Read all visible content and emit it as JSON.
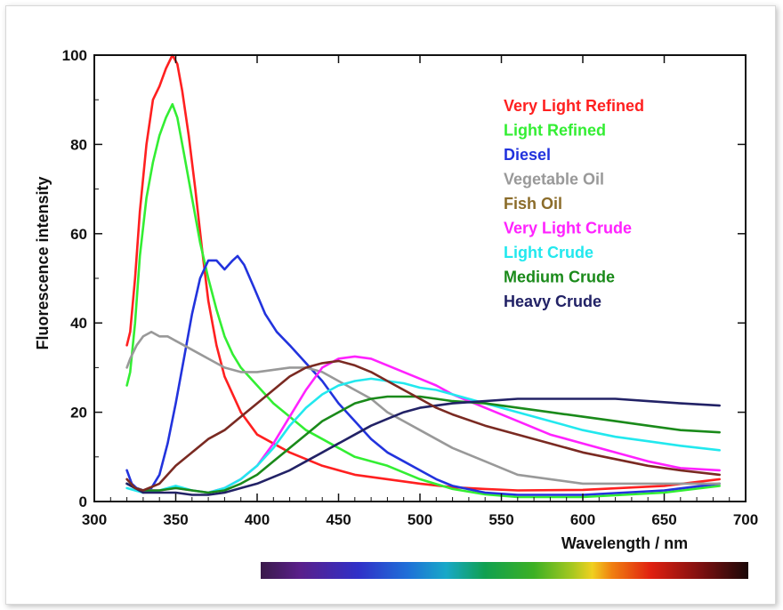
{
  "chart_data": {
    "type": "line",
    "xlabel": "Wavelength  / nm",
    "ylabel": "Fluorescence intensity",
    "xlim": [
      300,
      700
    ],
    "ylim": [
      0,
      100
    ],
    "xticks": [
      "300",
      "350",
      "400",
      "450",
      "500",
      "550",
      "600",
      "650",
      "700"
    ],
    "yticks": [
      "0",
      "20",
      "40",
      "60",
      "80",
      "100"
    ],
    "grid": false,
    "legend_position": "top-right",
    "spectrum_bar": true,
    "series": [
      {
        "name": "Very Light Refined",
        "color": "#ff2020",
        "points": [
          [
            320,
            35
          ],
          [
            322,
            38
          ],
          [
            325,
            50
          ],
          [
            328,
            65
          ],
          [
            332,
            80
          ],
          [
            336,
            90
          ],
          [
            340,
            93
          ],
          [
            344,
            97
          ],
          [
            348,
            100
          ],
          [
            351,
            98
          ],
          [
            354,
            92
          ],
          [
            358,
            82
          ],
          [
            362,
            70
          ],
          [
            366,
            57
          ],
          [
            370,
            45
          ],
          [
            375,
            35
          ],
          [
            380,
            28
          ],
          [
            390,
            20
          ],
          [
            400,
            15
          ],
          [
            420,
            11
          ],
          [
            440,
            8
          ],
          [
            460,
            6
          ],
          [
            480,
            5
          ],
          [
            500,
            4
          ],
          [
            520,
            3.2
          ],
          [
            540,
            2.8
          ],
          [
            560,
            2.5
          ],
          [
            600,
            2.6
          ],
          [
            650,
            3.5
          ],
          [
            684,
            5
          ]
        ]
      },
      {
        "name": "Light Refined",
        "color": "#33ee33",
        "points": [
          [
            320,
            26
          ],
          [
            322,
            29
          ],
          [
            325,
            40
          ],
          [
            328,
            55
          ],
          [
            332,
            68
          ],
          [
            336,
            76
          ],
          [
            340,
            82
          ],
          [
            344,
            86
          ],
          [
            348,
            89
          ],
          [
            351,
            86
          ],
          [
            355,
            78
          ],
          [
            360,
            68
          ],
          [
            365,
            58
          ],
          [
            370,
            50
          ],
          [
            375,
            43
          ],
          [
            380,
            37
          ],
          [
            385,
            33
          ],
          [
            390,
            30
          ],
          [
            400,
            26
          ],
          [
            410,
            22
          ],
          [
            420,
            19
          ],
          [
            430,
            16
          ],
          [
            440,
            14
          ],
          [
            450,
            12
          ],
          [
            460,
            10
          ],
          [
            480,
            8
          ],
          [
            500,
            5
          ],
          [
            520,
            2.8
          ],
          [
            540,
            1.6
          ],
          [
            560,
            1
          ],
          [
            600,
            1
          ],
          [
            650,
            2
          ],
          [
            684,
            3.5
          ]
        ]
      },
      {
        "name": "Diesel",
        "color": "#2233dd",
        "points": [
          [
            320,
            7
          ],
          [
            323,
            4
          ],
          [
            326,
            3
          ],
          [
            330,
            2.5
          ],
          [
            335,
            3
          ],
          [
            340,
            6
          ],
          [
            345,
            13
          ],
          [
            350,
            22
          ],
          [
            355,
            32
          ],
          [
            360,
            42
          ],
          [
            365,
            50
          ],
          [
            370,
            54
          ],
          [
            375,
            54
          ],
          [
            380,
            52
          ],
          [
            385,
            54
          ],
          [
            388,
            55
          ],
          [
            392,
            53
          ],
          [
            398,
            48
          ],
          [
            405,
            42
          ],
          [
            412,
            38
          ],
          [
            420,
            35
          ],
          [
            430,
            31
          ],
          [
            440,
            27
          ],
          [
            450,
            22
          ],
          [
            460,
            18
          ],
          [
            470,
            14
          ],
          [
            480,
            11
          ],
          [
            490,
            9
          ],
          [
            500,
            7
          ],
          [
            510,
            5
          ],
          [
            520,
            3.5
          ],
          [
            540,
            2
          ],
          [
            560,
            1.5
          ],
          [
            600,
            1.5
          ],
          [
            650,
            2.5
          ],
          [
            684,
            4
          ]
        ]
      },
      {
        "name": "Vegetable Oil",
        "color": "#999999",
        "points": [
          [
            320,
            30
          ],
          [
            322,
            32
          ],
          [
            326,
            35
          ],
          [
            330,
            37
          ],
          [
            335,
            38
          ],
          [
            340,
            37
          ],
          [
            345,
            37
          ],
          [
            350,
            36
          ],
          [
            355,
            35
          ],
          [
            360,
            34
          ],
          [
            365,
            33
          ],
          [
            370,
            32
          ],
          [
            380,
            30
          ],
          [
            390,
            29
          ],
          [
            400,
            29
          ],
          [
            410,
            29.5
          ],
          [
            420,
            30
          ],
          [
            430,
            30
          ],
          [
            440,
            29
          ],
          [
            450,
            27
          ],
          [
            460,
            25
          ],
          [
            470,
            23
          ],
          [
            480,
            20
          ],
          [
            490,
            18
          ],
          [
            500,
            16
          ],
          [
            520,
            12
          ],
          [
            540,
            9
          ],
          [
            560,
            6
          ],
          [
            580,
            5
          ],
          [
            600,
            4
          ],
          [
            650,
            4
          ],
          [
            684,
            4
          ]
        ]
      },
      {
        "name": "Fish Oil",
        "color": "#8b6c2a",
        "points": []
      },
      {
        "name": "Very Light Crude",
        "color": "#ff22ff",
        "points": [
          [
            320,
            4
          ],
          [
            325,
            3
          ],
          [
            330,
            2.5
          ],
          [
            340,
            2.5
          ],
          [
            350,
            3
          ],
          [
            360,
            2.5
          ],
          [
            370,
            2
          ],
          [
            380,
            3
          ],
          [
            390,
            5
          ],
          [
            400,
            8
          ],
          [
            410,
            13
          ],
          [
            420,
            19
          ],
          [
            430,
            25
          ],
          [
            440,
            30
          ],
          [
            450,
            32
          ],
          [
            460,
            32.5
          ],
          [
            470,
            32
          ],
          [
            480,
            30.5
          ],
          [
            490,
            29
          ],
          [
            500,
            27.5
          ],
          [
            510,
            26
          ],
          [
            520,
            24
          ],
          [
            540,
            21
          ],
          [
            560,
            18
          ],
          [
            580,
            15
          ],
          [
            600,
            13
          ],
          [
            620,
            11
          ],
          [
            640,
            9
          ],
          [
            660,
            7.5
          ],
          [
            684,
            7
          ]
        ]
      },
      {
        "name": "Light Crude",
        "color": "#22e8ee",
        "points": [
          [
            320,
            3
          ],
          [
            325,
            2.5
          ],
          [
            330,
            2
          ],
          [
            340,
            2.5
          ],
          [
            350,
            3.5
          ],
          [
            360,
            2.5
          ],
          [
            370,
            2
          ],
          [
            380,
            3
          ],
          [
            390,
            5
          ],
          [
            400,
            8
          ],
          [
            410,
            12
          ],
          [
            420,
            17
          ],
          [
            430,
            21
          ],
          [
            440,
            24
          ],
          [
            450,
            26
          ],
          [
            460,
            27
          ],
          [
            470,
            27.5
          ],
          [
            480,
            27
          ],
          [
            490,
            26.5
          ],
          [
            500,
            25.5
          ],
          [
            510,
            25
          ],
          [
            520,
            24
          ],
          [
            540,
            22
          ],
          [
            560,
            20
          ],
          [
            580,
            18
          ],
          [
            600,
            16
          ],
          [
            620,
            14.5
          ],
          [
            640,
            13.5
          ],
          [
            660,
            12.5
          ],
          [
            684,
            11.5
          ]
        ]
      },
      {
        "name": "Medium Crude",
        "color": "#1a8a1a",
        "points": [
          [
            320,
            4
          ],
          [
            325,
            3
          ],
          [
            330,
            2.5
          ],
          [
            340,
            2.5
          ],
          [
            350,
            3
          ],
          [
            360,
            2.5
          ],
          [
            370,
            2
          ],
          [
            380,
            2.5
          ],
          [
            390,
            4
          ],
          [
            400,
            6
          ],
          [
            410,
            9
          ],
          [
            420,
            12
          ],
          [
            430,
            15
          ],
          [
            440,
            18
          ],
          [
            450,
            20
          ],
          [
            460,
            22
          ],
          [
            470,
            23
          ],
          [
            480,
            23.5
          ],
          [
            490,
            23.5
          ],
          [
            500,
            23.5
          ],
          [
            510,
            23
          ],
          [
            520,
            22.5
          ],
          [
            540,
            22
          ],
          [
            560,
            21
          ],
          [
            580,
            20
          ],
          [
            600,
            19
          ],
          [
            620,
            18
          ],
          [
            640,
            17
          ],
          [
            660,
            16
          ],
          [
            684,
            15.5
          ]
        ]
      },
      {
        "name": "Heavy Crude",
        "color": "#222266",
        "points": [
          [
            320,
            4
          ],
          [
            325,
            3
          ],
          [
            330,
            2
          ],
          [
            340,
            2
          ],
          [
            350,
            2
          ],
          [
            360,
            1.5
          ],
          [
            370,
            1.5
          ],
          [
            380,
            2
          ],
          [
            390,
            3
          ],
          [
            400,
            4
          ],
          [
            410,
            5.5
          ],
          [
            420,
            7
          ],
          [
            430,
            9
          ],
          [
            440,
            11
          ],
          [
            450,
            13
          ],
          [
            460,
            15
          ],
          [
            470,
            17
          ],
          [
            480,
            18.5
          ],
          [
            490,
            20
          ],
          [
            500,
            21
          ],
          [
            510,
            21.5
          ],
          [
            520,
            22
          ],
          [
            540,
            22.5
          ],
          [
            560,
            23
          ],
          [
            580,
            23
          ],
          [
            600,
            23
          ],
          [
            620,
            23
          ],
          [
            640,
            22.5
          ],
          [
            660,
            22
          ],
          [
            684,
            21.5
          ]
        ]
      },
      {
        "name": "",
        "color": "#7a2a22",
        "points": [
          [
            320,
            5
          ],
          [
            325,
            3
          ],
          [
            330,
            2.5
          ],
          [
            340,
            4
          ],
          [
            350,
            8
          ],
          [
            360,
            11
          ],
          [
            370,
            14
          ],
          [
            380,
            16
          ],
          [
            390,
            19
          ],
          [
            400,
            22
          ],
          [
            410,
            25
          ],
          [
            420,
            28
          ],
          [
            430,
            30
          ],
          [
            440,
            31
          ],
          [
            450,
            31.5
          ],
          [
            460,
            30.5
          ],
          [
            470,
            29
          ],
          [
            480,
            27
          ],
          [
            490,
            25
          ],
          [
            500,
            23
          ],
          [
            510,
            21
          ],
          [
            520,
            19.5
          ],
          [
            540,
            17
          ],
          [
            560,
            15
          ],
          [
            580,
            13
          ],
          [
            600,
            11
          ],
          [
            620,
            9.5
          ],
          [
            640,
            8
          ],
          [
            660,
            7
          ],
          [
            684,
            6
          ]
        ]
      }
    ]
  }
}
